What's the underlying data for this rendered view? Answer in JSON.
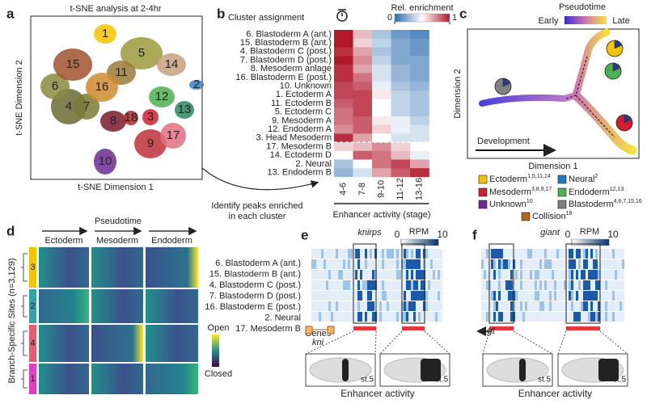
{
  "panel_a": {
    "label": "a",
    "title": "t-SNE analysis at 2-4hr",
    "y_axis": "t-SNE Dimension 2",
    "x_axis": "t-SNE Dimension 1",
    "clusters": [
      "1",
      "2",
      "3",
      "4",
      "5",
      "6",
      "7",
      "8",
      "9",
      "10",
      "11",
      "12",
      "13",
      "14",
      "15",
      "16",
      "17",
      "18"
    ],
    "annotation": [
      "Identify peaks enriched",
      "in each cluster"
    ]
  },
  "panel_b": {
    "label": "b",
    "header": "Cluster assignment",
    "colorbar_title": "Rel. enrichment",
    "colorbar_ticks": [
      0,
      1
    ],
    "rows": [
      {
        "text": "6. Blastoderm A (ant.)",
        "color": "#9b8f3a"
      },
      {
        "text": "15. Blastoderm B (ant.)",
        "color": "#a0522d"
      },
      {
        "text": "4. Blastoderm C (post.)",
        "color": "#3a3a1a"
      },
      {
        "text": "7. Blastoderm D (post.)",
        "color": "#3a3a1a"
      },
      {
        "text": "8. Mesoderm anlage",
        "color": "#6b1a1a"
      },
      {
        "text": "16. Blastoderm E (post.)",
        "color": "#c0701c"
      },
      {
        "text": "10. Unknown",
        "color": "#6a2c91"
      },
      {
        "text": "1. Ectoderm A",
        "color": "#c9a800"
      },
      {
        "text": "11. Ectoderm B",
        "color": "#6b5a1a"
      },
      {
        "text": "5. Ectoderm C",
        "color": "#8a7a20"
      },
      {
        "text": "9. Mesoderm A",
        "color": "#b03030"
      },
      {
        "text": "12. Endoderm A",
        "color": "#4caf50"
      },
      {
        "text": "3. Head Mesoderm",
        "color": "#e01010"
      },
      {
        "text": "17. Mesoderm B",
        "color": "#d86a8a"
      },
      {
        "text": "14. Ectoderm D",
        "color": "#8b6b4a"
      },
      {
        "text": "2. Neural",
        "color": "#2a7ab8"
      },
      {
        "text": "13. Endoderm B",
        "color": "#1a7a4a"
      }
    ],
    "columns": [
      "4-6",
      "7-8",
      "9-10",
      "11-12",
      "13-16"
    ],
    "x_axis": "Enhancer activity (stage)",
    "values": [
      [
        1.0,
        0.65,
        0.3,
        0.15,
        0.1
      ],
      [
        1.0,
        0.6,
        0.35,
        0.2,
        0.15
      ],
      [
        0.95,
        0.7,
        0.3,
        0.2,
        0.15
      ],
      [
        1.0,
        0.75,
        0.35,
        0.2,
        0.2
      ],
      [
        0.95,
        0.7,
        0.4,
        0.25,
        0.2
      ],
      [
        0.95,
        0.8,
        0.4,
        0.25,
        0.2
      ],
      [
        0.9,
        0.85,
        0.45,
        0.3,
        0.25
      ],
      [
        0.9,
        0.9,
        0.55,
        0.35,
        0.3
      ],
      [
        0.85,
        0.9,
        0.5,
        0.35,
        0.3
      ],
      [
        0.8,
        0.9,
        0.5,
        0.35,
        0.3
      ],
      [
        0.8,
        0.85,
        0.55,
        0.45,
        0.35
      ],
      [
        0.75,
        0.85,
        0.6,
        0.45,
        0.4
      ],
      [
        0.95,
        0.7,
        0.5,
        0.4,
        0.4
      ],
      [
        0.6,
        0.65,
        0.75,
        0.6,
        0.5
      ],
      [
        0.5,
        0.85,
        0.8,
        0.65,
        0.45
      ],
      [
        0.3,
        0.5,
        0.8,
        0.9,
        0.7
      ],
      [
        0.25,
        0.4,
        0.7,
        0.85,
        0.95
      ]
    ]
  },
  "panel_c": {
    "label": "c",
    "colorbar_title": "Pseudotime",
    "early": "Early",
    "late": "Late",
    "y_axis": "Dimension 2",
    "x_axis": "Dimension 1",
    "arrow": "Development",
    "legend": [
      {
        "name": "Ectoderm",
        "sup": "1,5,11,14",
        "color": "#f2c500"
      },
      {
        "name": "Neural",
        "sup": "2",
        "color": "#2a7ab8"
      },
      {
        "name": "Mesoderm",
        "sup": "3,8,9,17",
        "color": "#d02030"
      },
      {
        "name": "Endoderm",
        "sup": "12,13",
        "color": "#4caf50"
      },
      {
        "name": "Unknown",
        "sup": "10",
        "color": "#6a2c91"
      },
      {
        "name": "Blastoderm",
        "sup": "4,6,7,15,16",
        "color": "#808080"
      },
      {
        "name": "Collision",
        "sup": "18",
        "color": "#b5651d"
      }
    ]
  },
  "panel_d": {
    "label": "d",
    "pseudotime": "Pseudotime",
    "branches": [
      {
        "name": "Ectoderm",
        "color": "#c9a800"
      },
      {
        "name": "Mesoderm",
        "color": "#e01010"
      },
      {
        "name": "Endoderm",
        "color": "#4caf50"
      }
    ],
    "y_axis": "Branch-Specific Sites (n=3,129)",
    "clusters": [
      {
        "name": "3",
        "color": "#f2c500"
      },
      {
        "name": "2",
        "color": "#3aa0a0"
      },
      {
        "name": "4",
        "color": "#e06070"
      },
      {
        "name": "1",
        "color": "#e040c0"
      }
    ],
    "colorbar": [
      "Open",
      "Closed"
    ],
    "rows": [
      {
        "text": "6. Blastoderm A (ant.)",
        "color": "#9b8f3a"
      },
      {
        "text": "15. Blastoderm B (ant.)",
        "color": "#a0522d"
      },
      {
        "text": "4. Blastoderm C (post.)",
        "color": "#3a3a1a"
      },
      {
        "text": "7. Blastoderm D (post.)",
        "color": "#3a3a1a"
      },
      {
        "text": "16. Blastoderm E (post.)",
        "color": "#c0701c"
      },
      {
        "text": "2. Neural",
        "color": "#2a7ab8"
      },
      {
        "text": "17. Mesoderm B",
        "color": "#d86a8a"
      }
    ]
  },
  "panel_e": {
    "label": "e",
    "track": "knirps",
    "rpm": "RPM",
    "rpm_ticks": [
      0,
      10
    ],
    "genes": "Genes",
    "gene": "kni",
    "stages": [
      "st.5",
      "st.5"
    ],
    "caption": "Enhancer activity"
  },
  "panel_f": {
    "label": "f",
    "track": "giant",
    "rpm": "RPM",
    "rpm_ticks": [
      0,
      10
    ],
    "gene": "gt",
    "stages": [
      "st.5",
      "st.5"
    ],
    "caption": "Enhancer activity"
  }
}
